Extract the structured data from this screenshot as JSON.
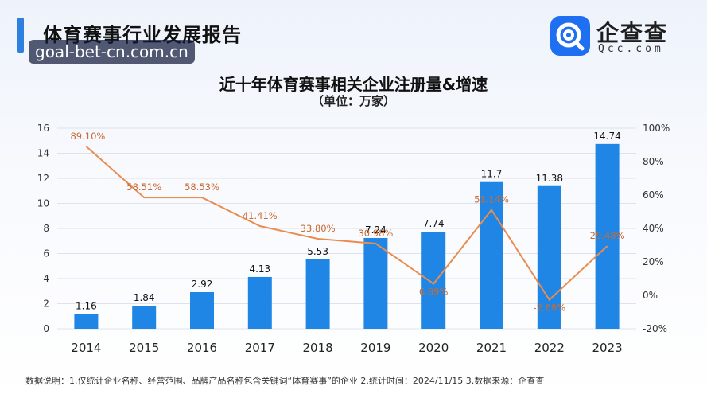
{
  "header": {
    "title": "体育赛事行业发展报告",
    "watermark": "goal-bet-cn.com.cn"
  },
  "logo": {
    "name_cn": "企查查",
    "name_en": "Qcc.com",
    "icon": "qcc-logo-icon",
    "color": "#1f6ff2"
  },
  "chart_data": {
    "type": "bar",
    "title": "近十年体育赛事相关企业注册量&增速",
    "subtitle": "（单位：万家）",
    "categories": [
      "2014",
      "2015",
      "2016",
      "2017",
      "2018",
      "2019",
      "2020",
      "2021",
      "2022",
      "2023"
    ],
    "bar_values": [
      1.16,
      1.84,
      2.92,
      4.13,
      5.53,
      7.24,
      7.74,
      11.7,
      11.38,
      14.74
    ],
    "bar_labels": [
      "1.16",
      "1.84",
      "2.92",
      "4.13",
      "5.53",
      "7.24",
      "7.74",
      "11.7",
      "11.38",
      "14.74"
    ],
    "line_values": [
      89.1,
      58.51,
      58.53,
      41.41,
      33.8,
      30.98,
      6.89,
      51.14,
      -2.68,
      29.48
    ],
    "line_labels": [
      "89.10%",
      "58.51%",
      "58.53%",
      "41.41%",
      "33.80%",
      "30.98%",
      "6.89%",
      "51.14%",
      "-2.68%",
      "29.48%"
    ],
    "y_left": {
      "min": 0,
      "max": 16,
      "ticks": [
        "0",
        "2",
        "4",
        "6",
        "8",
        "10",
        "12",
        "14",
        "16"
      ]
    },
    "y_right": {
      "min": -20,
      "max": 100,
      "ticks": [
        "-20%",
        "0%",
        "20%",
        "40%",
        "60%",
        "80%",
        "100%"
      ]
    },
    "grid": true,
    "bar_color": "#1f86e6",
    "line_color": "#e88d4f",
    "line_label_color": "#c96a30"
  },
  "footnote": "数据说明：1.仅统计企业名称、经营范围、品牌产品名称包含关键词“体育赛事”的企业  2.统计时间：2024/11/15  3.数据来源：企查查"
}
